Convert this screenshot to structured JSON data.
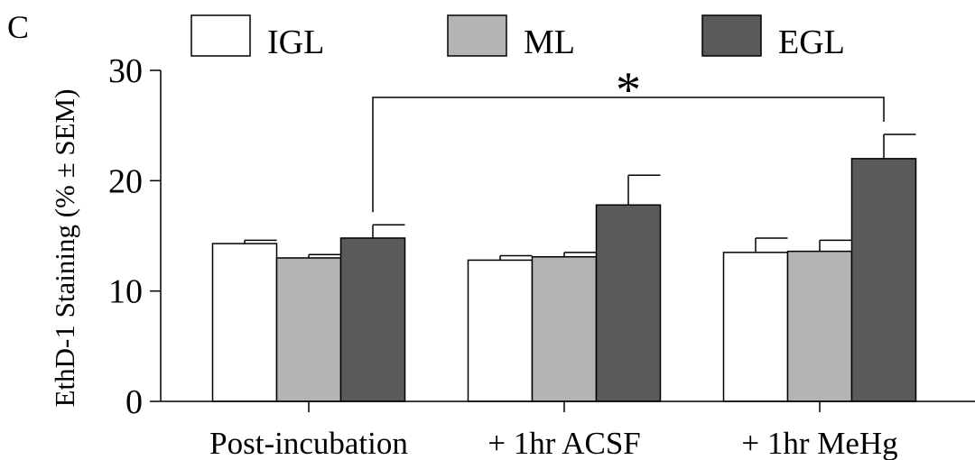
{
  "panel_label": "C",
  "chart_data": {
    "type": "bar",
    "categories": [
      "Post-incubation",
      "+ 1hr ACSF",
      "+ 1hr MeHg"
    ],
    "series": [
      {
        "name": "IGL",
        "values": [
          14.3,
          12.8,
          13.5
        ],
        "errors": [
          0.3,
          0.4,
          1.3
        ],
        "color": "#ffffff"
      },
      {
        "name": "ML",
        "values": [
          13.0,
          13.1,
          13.6
        ],
        "errors": [
          0.3,
          0.4,
          1.0
        ],
        "color": "#b4b4b4"
      },
      {
        "name": "EGL",
        "values": [
          14.8,
          17.8,
          22.0
        ],
        "errors": [
          1.2,
          2.7,
          2.2
        ],
        "color": "#5a5a5a"
      }
    ],
    "ylabel": "EthD-1 Staining (% ± SEM)",
    "ylim": [
      0,
      30
    ],
    "yticks": [
      0,
      10,
      20,
      30
    ],
    "legend_position": "top",
    "grid": false,
    "annotation": {
      "text": "*",
      "from": [
        "Post-incubation",
        "EGL"
      ],
      "to": [
        "+ 1hr MeHg",
        "EGL"
      ]
    }
  }
}
